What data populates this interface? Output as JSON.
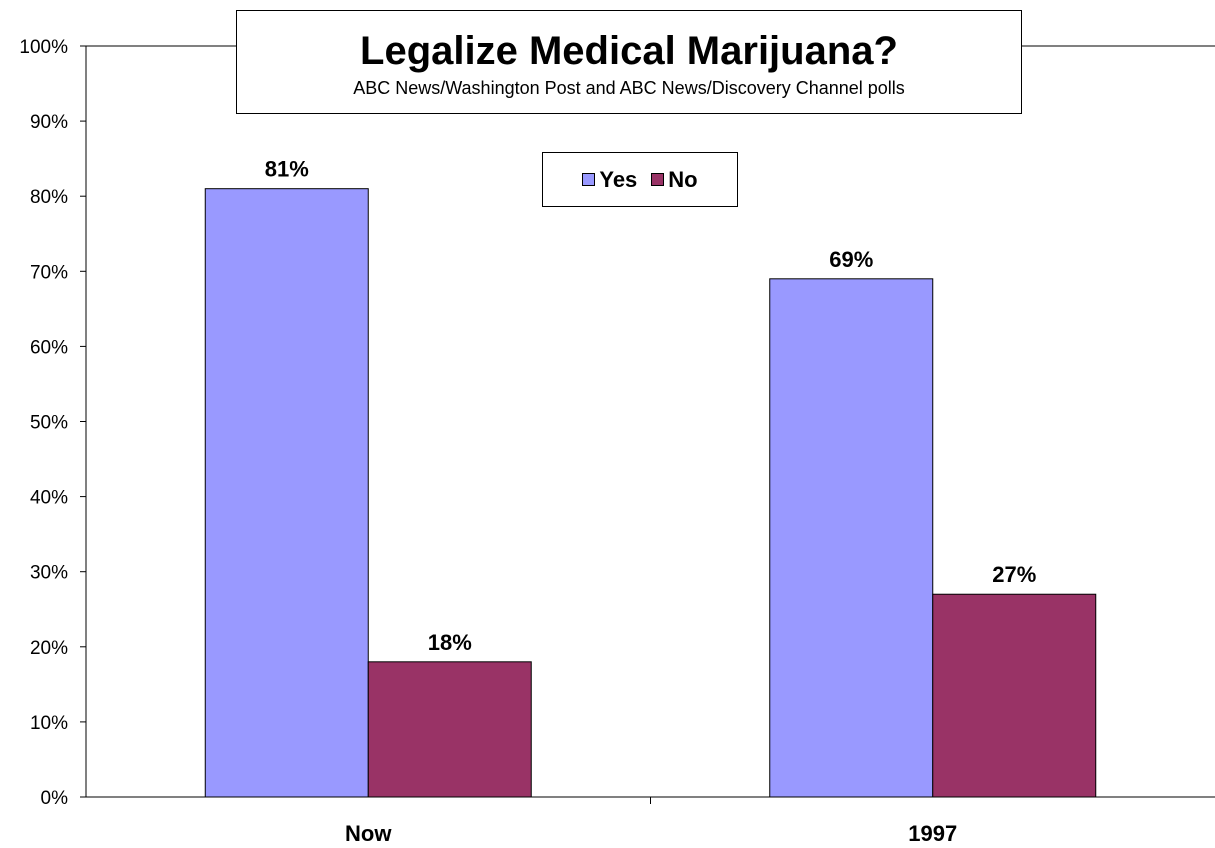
{
  "chart_data": {
    "type": "bar",
    "title": "Legalize Medical Marijuana?",
    "subtitle": "ABC News/Washington Post  and ABC News/Discovery Channel polls",
    "categories": [
      "Now",
      "1997"
    ],
    "series": [
      {
        "name": "Yes",
        "values": [
          81,
          69
        ],
        "color": "#9999ff",
        "labels": [
          "81%",
          "69%"
        ]
      },
      {
        "name": "No",
        "values": [
          18,
          27
        ],
        "color": "#993366",
        "labels": [
          "18%",
          "27%"
        ]
      }
    ],
    "ylim": [
      0,
      100
    ],
    "yticks": [
      0,
      10,
      20,
      30,
      40,
      50,
      60,
      70,
      80,
      90,
      100
    ],
    "ytick_labels": [
      "0%",
      "10%",
      "20%",
      "30%",
      "40%",
      "50%",
      "60%",
      "70%",
      "80%",
      "90%",
      "100%"
    ],
    "xlabel": "",
    "ylabel": "",
    "grid": false,
    "legend_position": "top-center"
  }
}
